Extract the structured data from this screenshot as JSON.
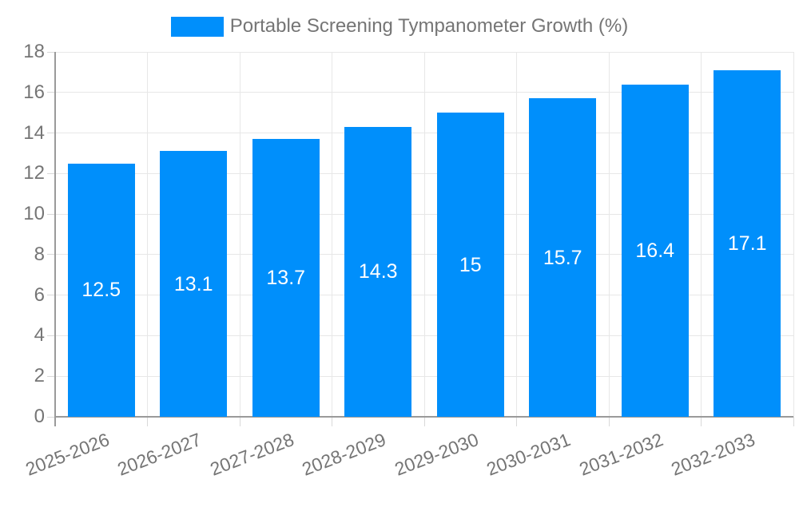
{
  "chart_data": {
    "type": "bar",
    "title": "",
    "legend_label": "Portable Screening Tympanometer Growth (%)",
    "legend_position": "top",
    "categories": [
      "2025-2026",
      "2026-2027",
      "2027-2028",
      "2028-2029",
      "2029-2030",
      "2030-2031",
      "2031-2032",
      "2032-2033"
    ],
    "series": [
      {
        "name": "Portable Screening Tympanometer Growth (%)",
        "values": [
          12.5,
          13.1,
          13.7,
          14.3,
          15,
          15.7,
          16.4,
          17.1
        ],
        "value_labels": [
          "12.5",
          "13.1",
          "13.7",
          "14.3",
          "15",
          "15.7",
          "16.4",
          "17.1"
        ]
      }
    ],
    "xlabel": "",
    "ylabel": "",
    "ylim": [
      0,
      18
    ],
    "y_ticks": [
      0,
      2,
      4,
      6,
      8,
      10,
      12,
      14,
      16,
      18
    ],
    "grid": true,
    "colors": {
      "bar": "#008FFB",
      "gridline": "#e7e7e7",
      "axis_line": "#9a9a9a",
      "tick_mark": "#d9d9d9",
      "tick_label": "#757575",
      "legend_text": "#757575",
      "value_label": "#ffffff",
      "background": "#ffffff"
    }
  }
}
